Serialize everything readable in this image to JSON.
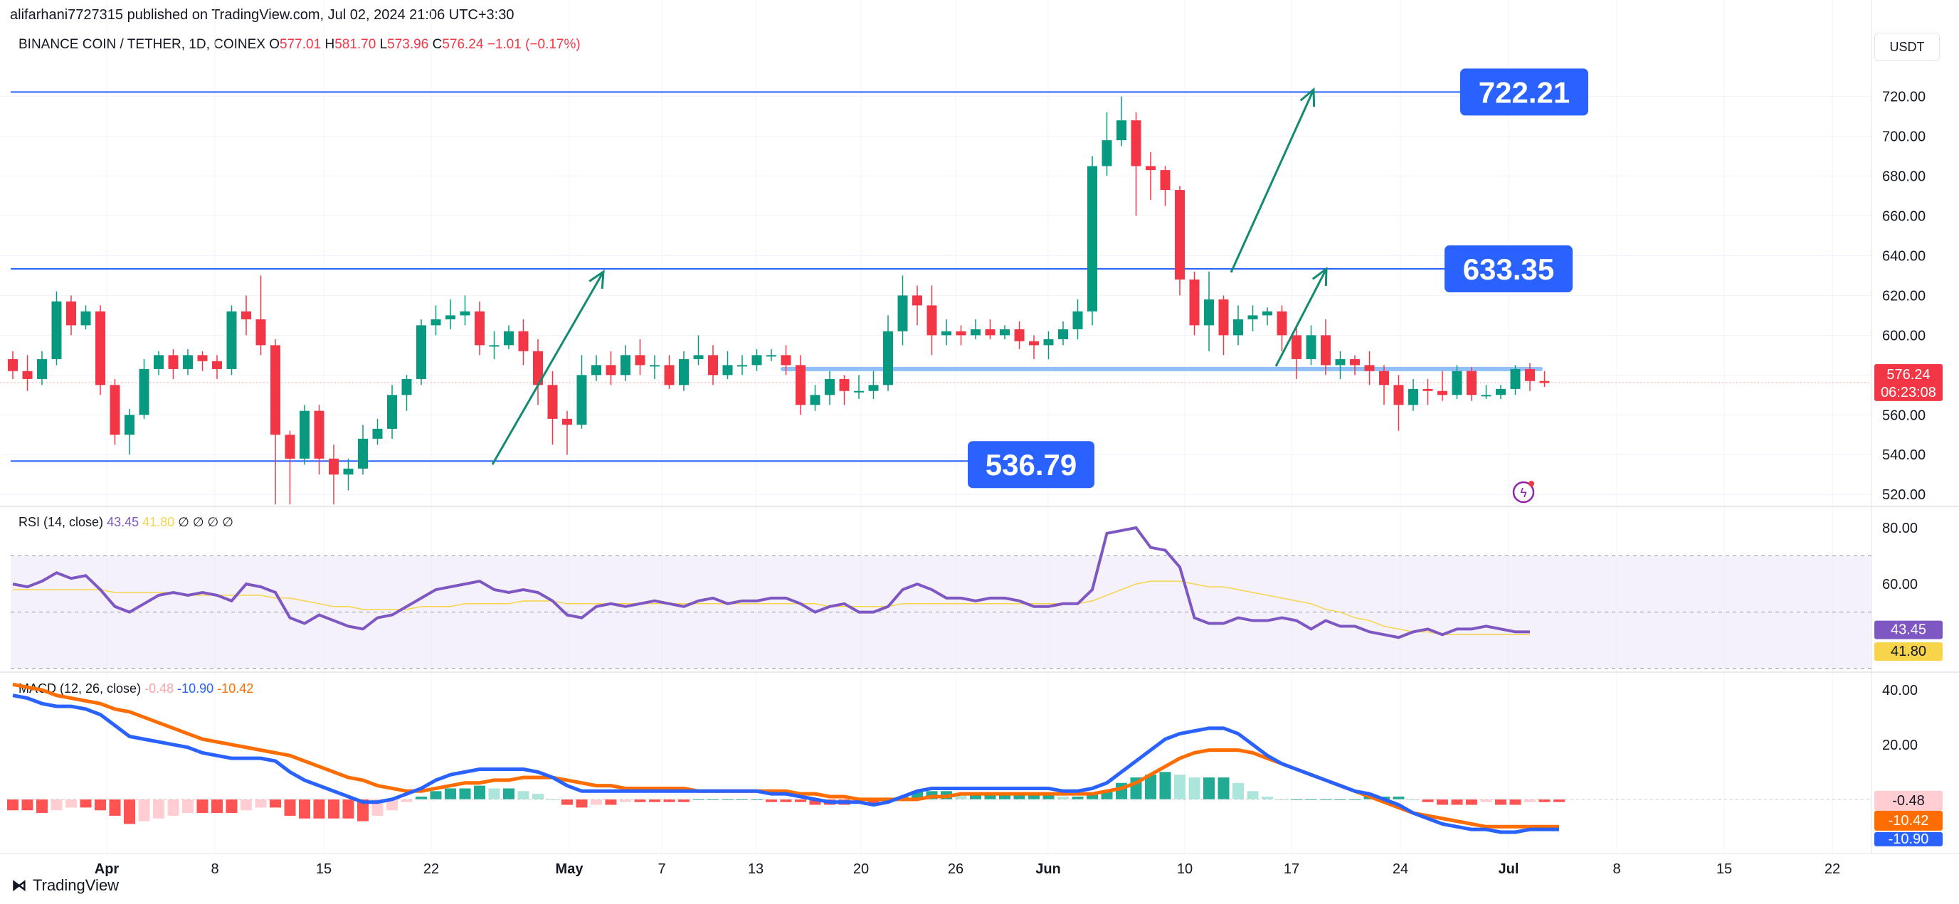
{
  "header": {
    "published_line": "alifarhani7727315 published on TradingView.com, Jul 02, 2024 21:06 UTC+3:30",
    "symbol": "BINANCE COIN / TETHER, 1D, COINEX",
    "open_label": "O",
    "open": "577.01",
    "high_label": "H",
    "high": "581.70",
    "low_label": "L",
    "low": "573.96",
    "close_label": "C",
    "close": "576.24",
    "change": "−1.01 (−0.17%)",
    "currency_button": "USDT"
  },
  "price_labels": {
    "current_price": "576.24",
    "countdown": "06:23:08",
    "level_high": "722.21",
    "level_mid": "633.35",
    "level_low": "536.79"
  },
  "rsi": {
    "title": "RSI (14, close)",
    "value": "43.45",
    "ma_value": "41.80",
    "extra": "∅ ∅ ∅ ∅",
    "axis": [
      "80.00",
      "60.00"
    ]
  },
  "macd": {
    "title": "MACD (12, 26, close)",
    "hist_value": "-0.48",
    "macd_value": "-10.90",
    "signal_value": "-10.42",
    "axis": [
      "40.00",
      "20.00"
    ]
  },
  "footer": {
    "brand": "TradingView"
  },
  "colors": {
    "up": "#089981",
    "down": "#f23645",
    "level_line": "#2962ff",
    "rsi_line": "#7e57c2",
    "rsi_ma": "#f7d44a",
    "macd_line": "#2962ff",
    "signal_line": "#ff6d00",
    "arrow": "#138b72",
    "support": "#90bff9"
  },
  "chart_data": {
    "type": "candlestick",
    "price_axis_ticks": [
      720,
      700,
      680,
      660,
      640,
      620,
      600,
      580,
      560,
      540,
      520
    ],
    "x_tick_labels": [
      "Apr",
      "8",
      "15",
      "22",
      "May",
      "7",
      "13",
      "20",
      "26",
      "Jun",
      "10",
      "17",
      "24",
      "Jul",
      "8",
      "15",
      "22"
    ],
    "horizontal_levels": [
      722.21,
      633.35,
      536.79
    ],
    "support_level": 583,
    "candles": [
      [
        588,
        582,
        592,
        578
      ],
      [
        582,
        578,
        590,
        572
      ],
      [
        578,
        588,
        592,
        575
      ],
      [
        588,
        617,
        622,
        585
      ],
      [
        617,
        605,
        620,
        600
      ],
      [
        605,
        612,
        615,
        603
      ],
      [
        612,
        575,
        615,
        570
      ],
      [
        575,
        550,
        578,
        545
      ],
      [
        550,
        560,
        563,
        540
      ],
      [
        560,
        583,
        588,
        558
      ],
      [
        583,
        590,
        592,
        580
      ],
      [
        590,
        583,
        593,
        578
      ],
      [
        583,
        590,
        593,
        580
      ],
      [
        590,
        587,
        592,
        582
      ],
      [
        587,
        583,
        590,
        578
      ],
      [
        583,
        612,
        615,
        580
      ],
      [
        612,
        608,
        620,
        600
      ],
      [
        608,
        595,
        630,
        590
      ],
      [
        595,
        550,
        598,
        515
      ],
      [
        550,
        538,
        552,
        515
      ],
      [
        538,
        562,
        565,
        535
      ],
      [
        562,
        538,
        565,
        530
      ],
      [
        538,
        530,
        545,
        515
      ],
      [
        530,
        533,
        538,
        522
      ],
      [
        533,
        548,
        555,
        530
      ],
      [
        548,
        553,
        558,
        545
      ],
      [
        553,
        570,
        575,
        548
      ],
      [
        570,
        578,
        580,
        562
      ],
      [
        578,
        605,
        608,
        575
      ],
      [
        605,
        608,
        615,
        600
      ],
      [
        608,
        610,
        618,
        603
      ],
      [
        610,
        612,
        620,
        605
      ],
      [
        612,
        595,
        617,
        590
      ],
      [
        595,
        595,
        602,
        588
      ],
      [
        595,
        602,
        605,
        593
      ],
      [
        602,
        592,
        608,
        585
      ],
      [
        592,
        575,
        598,
        565
      ],
      [
        575,
        558,
        582,
        545
      ],
      [
        558,
        555,
        562,
        540
      ],
      [
        555,
        580,
        590,
        553
      ],
      [
        580,
        585,
        590,
        577
      ],
      [
        585,
        580,
        592,
        575
      ],
      [
        580,
        590,
        595,
        577
      ],
      [
        590,
        585,
        598,
        580
      ],
      [
        585,
        585,
        590,
        578
      ],
      [
        585,
        575,
        590,
        573
      ],
      [
        575,
        588,
        592,
        572
      ],
      [
        588,
        590,
        600,
        585
      ],
      [
        590,
        580,
        595,
        575
      ],
      [
        580,
        585,
        592,
        578
      ],
      [
        585,
        585,
        590,
        580
      ],
      [
        585,
        590,
        593,
        582
      ],
      [
        590,
        590,
        593,
        587
      ],
      [
        590,
        585,
        595,
        580
      ],
      [
        585,
        565,
        590,
        560
      ],
      [
        565,
        570,
        575,
        562
      ],
      [
        570,
        578,
        582,
        565
      ],
      [
        578,
        572,
        580,
        565
      ],
      [
        572,
        572,
        580,
        568
      ],
      [
        572,
        575,
        582,
        568
      ],
      [
        575,
        602,
        610,
        572
      ],
      [
        602,
        620,
        630,
        595
      ],
      [
        620,
        615,
        625,
        605
      ],
      [
        615,
        600,
        625,
        590
      ],
      [
        600,
        602,
        608,
        595
      ],
      [
        602,
        600,
        605,
        595
      ],
      [
        600,
        603,
        608,
        598
      ],
      [
        603,
        600,
        608,
        598
      ],
      [
        600,
        603,
        605,
        598
      ],
      [
        603,
        597,
        607,
        593
      ],
      [
        597,
        595,
        600,
        588
      ],
      [
        595,
        598,
        602,
        588
      ],
      [
        598,
        603,
        607,
        595
      ],
      [
        603,
        612,
        618,
        598
      ],
      [
        612,
        685,
        690,
        605
      ],
      [
        685,
        698,
        712,
        680
      ],
      [
        698,
        708,
        720,
        695
      ],
      [
        708,
        685,
        712,
        660
      ],
      [
        685,
        683,
        692,
        668
      ],
      [
        683,
        673,
        685,
        665
      ],
      [
        673,
        628,
        675,
        620
      ],
      [
        628,
        605,
        632,
        600
      ],
      [
        605,
        618,
        632,
        592
      ],
      [
        618,
        600,
        620,
        590
      ],
      [
        600,
        608,
        615,
        595
      ],
      [
        608,
        610,
        615,
        602
      ],
      [
        610,
        612,
        614,
        605
      ],
      [
        612,
        600,
        615,
        592
      ],
      [
        600,
        588,
        605,
        578
      ],
      [
        588,
        600,
        605,
        585
      ],
      [
        600,
        585,
        608,
        580
      ],
      [
        585,
        588,
        592,
        578
      ],
      [
        588,
        585,
        590,
        580
      ],
      [
        585,
        582,
        592,
        575
      ],
      [
        582,
        575,
        585,
        565
      ],
      [
        575,
        565,
        580,
        552
      ],
      [
        565,
        573,
        578,
        562
      ],
      [
        573,
        572,
        578,
        565
      ],
      [
        572,
        570,
        582,
        567
      ],
      [
        570,
        582,
        585,
        568
      ],
      [
        582,
        570,
        584,
        567
      ],
      [
        570,
        570,
        575,
        568
      ],
      [
        570,
        573,
        575,
        568
      ],
      [
        573,
        583,
        585,
        570
      ],
      [
        583,
        577,
        586,
        572
      ],
      [
        577,
        576,
        582,
        574
      ]
    ],
    "rsi_values": [
      60,
      59,
      61,
      64,
      62,
      63,
      58,
      52,
      50,
      53,
      56,
      57,
      56,
      57,
      56,
      54,
      60,
      59,
      57,
      48,
      46,
      49,
      47,
      45,
      44,
      48,
      49,
      52,
      55,
      58,
      59,
      60,
      61,
      58,
      57,
      58,
      57,
      54,
      49,
      48,
      52,
      53,
      52,
      53,
      54,
      53,
      52,
      54,
      55,
      53,
      54,
      54,
      55,
      55,
      53,
      50,
      52,
      53,
      50,
      50,
      52,
      58,
      60,
      58,
      55,
      55,
      54,
      55,
      55,
      54,
      52,
      52,
      53,
      53,
      58,
      78,
      79,
      80,
      73,
      72,
      66,
      48,
      46,
      46,
      48,
      47,
      47,
      48,
      47,
      44,
      47,
      45,
      45,
      43,
      42,
      41,
      43,
      44,
      42,
      44,
      44,
      45,
      44,
      43,
      43
    ],
    "rsi_ma_values": [
      58,
      58,
      58,
      58,
      58,
      58,
      58,
      57,
      57,
      57,
      57,
      57,
      56,
      56,
      56,
      56,
      56,
      56,
      55,
      55,
      54,
      53,
      52,
      52,
      51,
      51,
      51,
      51,
      52,
      52,
      52,
      53,
      53,
      53,
      53,
      54,
      54,
      54,
      53,
      53,
      53,
      53,
      53,
      53,
      53,
      53,
      53,
      53,
      53,
      53,
      53,
      53,
      53,
      53,
      53,
      53,
      52,
      52,
      52,
      52,
      52,
      53,
      53,
      53,
      53,
      53,
      53,
      53,
      53,
      53,
      53,
      53,
      53,
      53,
      54,
      56,
      58,
      60,
      61,
      61,
      61,
      60,
      59,
      59,
      58,
      57,
      56,
      55,
      54,
      53,
      51,
      50,
      48,
      47,
      45,
      44,
      43,
      43,
      42,
      42,
      42,
      42,
      42,
      42,
      42
    ],
    "macd_values": [
      38,
      37,
      35,
      34,
      34,
      33,
      31,
      27,
      23,
      22,
      21,
      20,
      19,
      17,
      16,
      15,
      15,
      15,
      14,
      10,
      7,
      5,
      3,
      1,
      -1,
      -1,
      0,
      2,
      4,
      7,
      9,
      10,
      11,
      11,
      11,
      11,
      10,
      8,
      5,
      3,
      3,
      3,
      3,
      3,
      3,
      3,
      3,
      3,
      3,
      3,
      3,
      3,
      2,
      2,
      1,
      0,
      -1,
      -1,
      -1,
      -2,
      -1,
      1,
      3,
      4,
      4,
      4,
      4,
      4,
      4,
      4,
      4,
      4,
      3,
      3,
      4,
      6,
      10,
      14,
      18,
      22,
      24,
      25,
      26,
      26,
      24,
      20,
      16,
      13,
      11,
      9,
      7,
      5,
      3,
      2,
      0,
      -2,
      -5,
      -7,
      -9,
      -10,
      -11,
      -11,
      -12,
      -12,
      -11,
      -11,
      -11
    ],
    "signal_values": [
      42,
      41,
      40,
      38,
      37,
      36,
      35,
      33,
      32,
      30,
      28,
      26,
      24,
      22,
      21,
      20,
      19,
      18,
      17,
      16,
      14,
      12,
      10,
      8,
      7,
      5,
      4,
      3,
      3,
      4,
      5,
      6,
      6,
      7,
      7,
      8,
      8,
      8,
      7,
      6,
      5,
      5,
      4,
      4,
      4,
      4,
      4,
      3,
      3,
      3,
      3,
      3,
      3,
      3,
      2,
      2,
      1,
      1,
      0,
      0,
      0,
      0,
      0,
      1,
      1,
      2,
      2,
      2,
      2,
      2,
      2,
      2,
      2,
      2,
      2,
      3,
      4,
      6,
      9,
      12,
      15,
      17,
      18,
      18,
      18,
      17,
      15,
      13,
      11,
      9,
      7,
      5,
      3,
      1,
      -1,
      -3,
      -5,
      -6,
      -7,
      -8,
      -9,
      -10,
      -10,
      -10,
      -10,
      -10,
      -10
    ],
    "macd_axis_ticks": [
      40,
      20,
      0
    ]
  }
}
